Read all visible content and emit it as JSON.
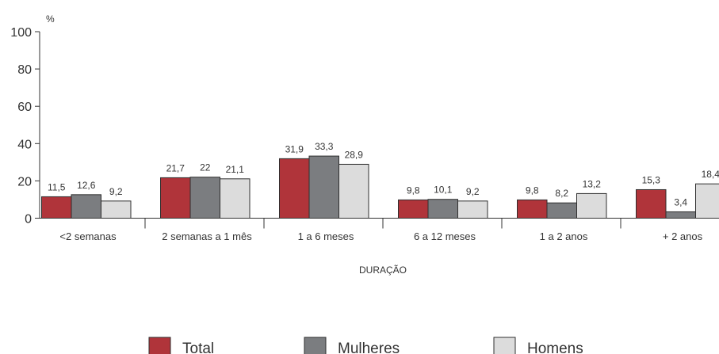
{
  "chart_data": {
    "type": "bar",
    "ylabel": "%",
    "xlabel": "DURAÇÃO",
    "ylim": [
      0,
      100
    ],
    "yticks": [
      0,
      20,
      40,
      60,
      80,
      100
    ],
    "grid": false,
    "legend_position": "bottom",
    "categories": [
      "<2 semanas",
      "2 semanas a 1 mês",
      "1 a 6 meses",
      "6 a 12 meses",
      "1 a 2 anos",
      "+ 2 anos"
    ],
    "series": [
      {
        "name": "Total",
        "color": "#b0343a",
        "values": [
          11.5,
          21.7,
          31.9,
          9.8,
          9.8,
          15.3
        ],
        "labels": [
          "11,5",
          "21,7",
          "31,9",
          "9,8",
          "9,8",
          "15,3"
        ]
      },
      {
        "name": "Mulheres",
        "color": "#7b7d80",
        "values": [
          12.6,
          22,
          33.3,
          10.1,
          8.2,
          3.4
        ],
        "labels": [
          "12,6",
          "22",
          "33,3",
          "10,1",
          "8,2",
          "3,4"
        ]
      },
      {
        "name": "Homens",
        "color": "#dcdcdc",
        "values": [
          9.2,
          21.1,
          28.9,
          9.2,
          13.2,
          18.4
        ],
        "labels": [
          "9,2",
          "21,1",
          "28,9",
          "9,2",
          "13,2",
          "18,4"
        ]
      }
    ]
  }
}
